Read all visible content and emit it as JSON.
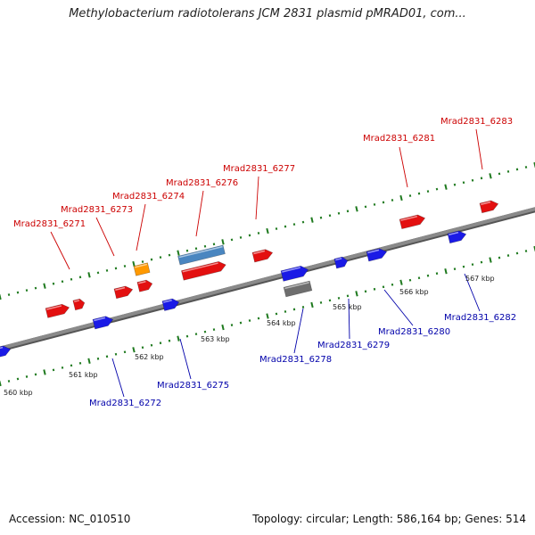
{
  "title": "Methylobacterium radiotolerans JCM 2831 plasmid pMRAD01, com...",
  "footer": {
    "accession": "Accession: NC_010510",
    "summary": "Topology: circular; Length: 586,164 bp; Genes: 514"
  },
  "colors": {
    "backbone": "#8a8a8a",
    "tick": "#1f7a1f",
    "label_forward": "#cc0000",
    "label_reverse": "#0000aa",
    "gene_red": "#e31010",
    "gene_blue": "#1a1ae6",
    "gene_orange": "#ff9900",
    "gene_steel": "#4a86c0",
    "gene_grey": "#6e6e6e"
  },
  "scale": {
    "labels": [
      "560 kbp",
      "561 kbp",
      "562 kbp",
      "563 kbp",
      "564 kbp",
      "565 kbp",
      "566 kbp",
      "567 kbp"
    ]
  },
  "gene_labels": [
    {
      "text": "Mrad2831_6271",
      "strand": "forward"
    },
    {
      "text": "Mrad2831_6273",
      "strand": "forward"
    },
    {
      "text": "Mrad2831_6274",
      "strand": "forward"
    },
    {
      "text": "Mrad2831_6276",
      "strand": "forward"
    },
    {
      "text": "Mrad2831_6277",
      "strand": "forward"
    },
    {
      "text": "Mrad2831_6281",
      "strand": "forward"
    },
    {
      "text": "Mrad2831_6283",
      "strand": "forward"
    },
    {
      "text": "Mrad2831_6272",
      "strand": "reverse"
    },
    {
      "text": "Mrad2831_6275",
      "strand": "reverse"
    },
    {
      "text": "Mrad2831_6278",
      "strand": "reverse"
    },
    {
      "text": "Mrad2831_6279",
      "strand": "reverse"
    },
    {
      "text": "Mrad2831_6280",
      "strand": "reverse"
    },
    {
      "text": "Mrad2831_6282",
      "strand": "reverse"
    }
  ]
}
